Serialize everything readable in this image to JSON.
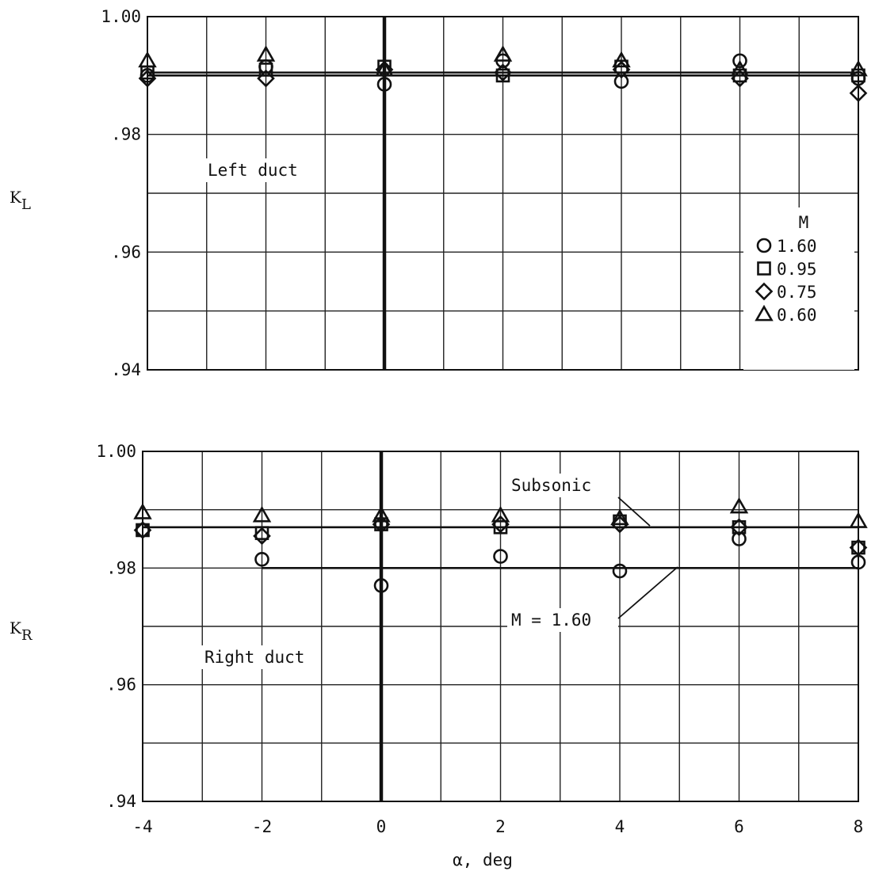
{
  "chart_data": [
    {
      "type": "scatter",
      "panel": "left",
      "annotation": "Left duct",
      "ylabel": "K",
      "ylabel_sub": "L",
      "xlim": [
        -4,
        8
      ],
      "ylim": [
        0.94,
        1.0
      ],
      "x_ticks": [
        "-4",
        "-2",
        "0",
        "2",
        "4",
        "6",
        "8"
      ],
      "y_ticks": [
        ".94",
        ".96",
        ".98",
        "1.00"
      ],
      "grid": true,
      "legend": {
        "title": "M",
        "entries": [
          {
            "marker": "circle",
            "label": "1.60"
          },
          {
            "marker": "square",
            "label": "0.95"
          },
          {
            "marker": "diamond",
            "label": "0.75"
          },
          {
            "marker": "triangle",
            "label": "0.60"
          }
        ]
      },
      "series": [
        {
          "name": "1.60",
          "marker": "circle",
          "x": [
            -4,
            -2,
            0,
            2,
            4,
            6,
            8
          ],
          "y": [
            0.99,
            0.9915,
            0.9885,
            0.9925,
            0.989,
            0.9925,
            0.9895
          ]
        },
        {
          "name": "0.95",
          "marker": "square",
          "x": [
            -4,
            -2,
            0,
            2,
            4,
            6,
            8
          ],
          "y": [
            0.9905,
            0.991,
            0.9915,
            0.99,
            0.9915,
            0.99,
            0.99
          ]
        },
        {
          "name": "0.75",
          "marker": "diamond",
          "x": [
            -4,
            -2,
            0,
            2,
            4,
            6,
            8
          ],
          "y": [
            0.9895,
            0.9895,
            0.991,
            0.9905,
            0.991,
            0.9895,
            0.987
          ]
        },
        {
          "name": "0.60",
          "marker": "triangle",
          "x": [
            -4,
            -2,
            0,
            2,
            4,
            6,
            8
          ],
          "y": [
            0.9925,
            0.9935,
            0.991,
            0.9935,
            0.9925,
            0.991,
            0.991
          ]
        }
      ],
      "fairing_lines": [
        {
          "y": 0.9905,
          "x_range": [
            -4,
            8
          ]
        },
        {
          "y": 0.99,
          "x_range": [
            -4,
            8
          ]
        }
      ]
    },
    {
      "type": "scatter",
      "panel": "right",
      "annotation": "Right duct",
      "ylabel": "K",
      "ylabel_sub": "R",
      "xlabel": "α, deg",
      "xlim": [
        -4,
        8
      ],
      "ylim": [
        0.94,
        1.0
      ],
      "x_ticks": [
        "-4",
        "-2",
        "0",
        "2",
        "4",
        "6",
        "8"
      ],
      "y_ticks": [
        ".94",
        ".96",
        ".98",
        "1.00"
      ],
      "grid": true,
      "series": [
        {
          "name": "1.60",
          "marker": "circle",
          "x": [
            -4,
            -2,
            0,
            2,
            4,
            6,
            8
          ],
          "y": [
            0.9865,
            0.9815,
            0.977,
            0.982,
            0.9795,
            0.985,
            0.981
          ]
        },
        {
          "name": "0.95",
          "marker": "square",
          "x": [
            -4,
            -2,
            0,
            2,
            4,
            6,
            8
          ],
          "y": [
            0.9865,
            0.986,
            0.9875,
            0.987,
            0.988,
            0.987,
            0.9835
          ]
        },
        {
          "name": "0.75",
          "marker": "diamond",
          "x": [
            -4,
            -2,
            0,
            2,
            4,
            6,
            8
          ],
          "y": [
            0.9865,
            0.9855,
            0.9875,
            0.9875,
            0.9875,
            0.987,
            0.9835
          ]
        },
        {
          "name": "0.60",
          "marker": "triangle",
          "x": [
            -4,
            -2,
            0,
            2,
            4,
            6,
            8
          ],
          "y": [
            0.9895,
            0.989,
            0.989,
            0.989,
            0.9885,
            0.9905,
            0.988
          ]
        }
      ],
      "fairing_lines": [
        {
          "label": "Subsonic",
          "y": 0.987,
          "x_range": [
            -4,
            8
          ]
        },
        {
          "label": "M = 1.60",
          "y": 0.98,
          "x_range": [
            -2,
            8
          ]
        }
      ]
    }
  ]
}
